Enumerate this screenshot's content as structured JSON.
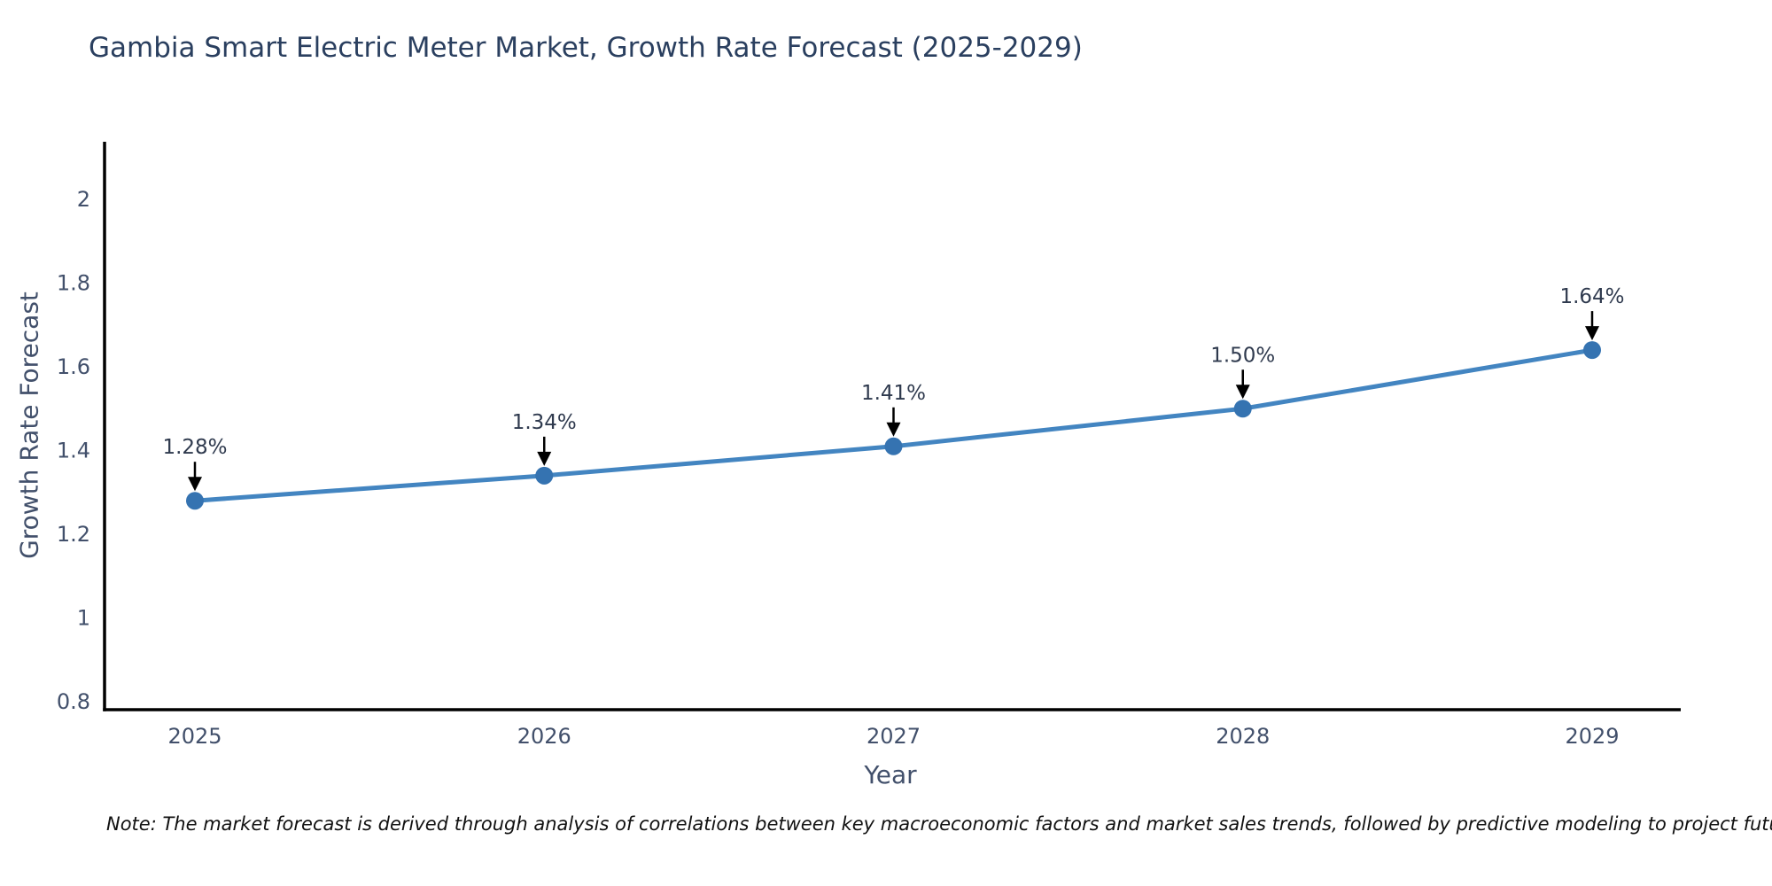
{
  "chart_data": {
    "type": "line",
    "title": "Gambia Smart Electric Meter Market, Growth Rate Forecast (2025-2029)",
    "xlabel": "Year",
    "ylabel": "Growth Rate Forecast",
    "x": [
      2025,
      2026,
      2027,
      2028,
      2029
    ],
    "x_tick_labels": [
      "2025",
      "2026",
      "2027",
      "2028",
      "2029"
    ],
    "series": [
      {
        "name": "Growth Rate Forecast",
        "values": [
          1.28,
          1.34,
          1.41,
          1.5,
          1.64
        ]
      }
    ],
    "point_labels": [
      "1.28%",
      "1.34%",
      "1.41%",
      "1.50%",
      "1.64%"
    ],
    "yticks": [
      0.8,
      1,
      1.2,
      1.4,
      1.6,
      1.8,
      2
    ],
    "ytick_labels": [
      "0.8",
      "1",
      "1.2",
      "1.4",
      "1.6",
      "1.8",
      "2"
    ],
    "ylim": [
      0.78,
      2.14
    ],
    "xlim": [
      2024.74,
      2029.25
    ],
    "grid": false,
    "legend": "none",
    "annotations_have_arrows": true,
    "colors": {
      "line": "#4385c1",
      "marker": "#3573b1",
      "axis": "#000000",
      "title_text": "#2a3f5f",
      "tick_text": "#42506b",
      "annotation_text": "#2f3a4e",
      "arrow": "#000000",
      "background": "#ffffff"
    }
  },
  "note": {
    "text": "Note: The market forecast is derived through analysis of correlations between key macroeconomic factors and market sales trends, followed by predictive modeling to project future sales"
  }
}
